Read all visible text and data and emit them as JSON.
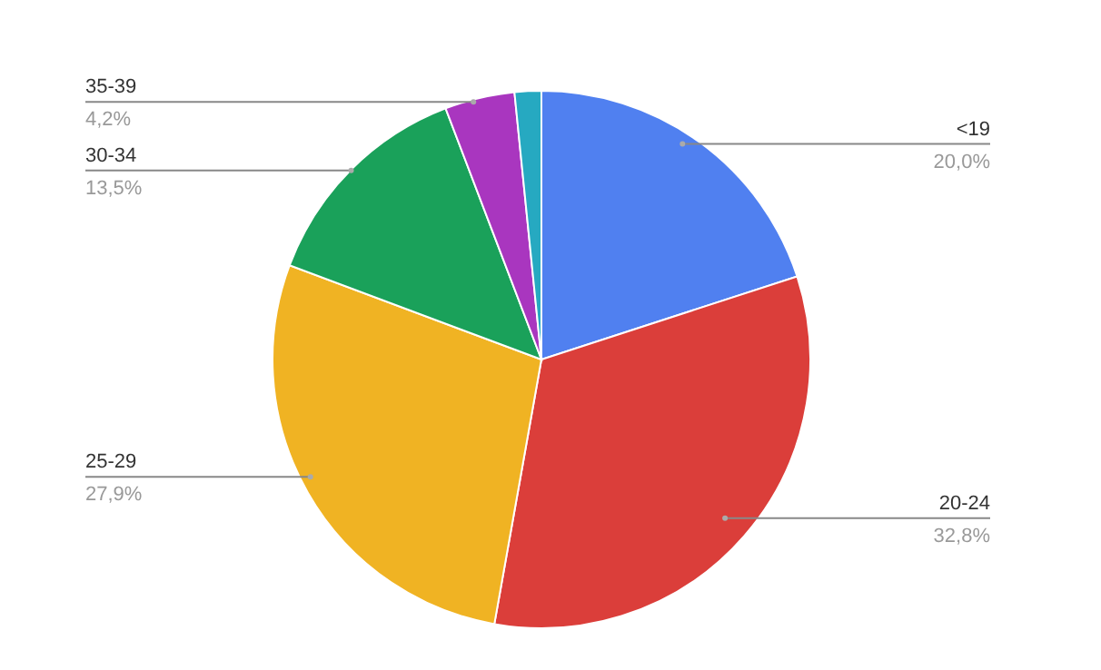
{
  "chart_data": {
    "type": "pie",
    "categories": [
      "<19",
      "20-24",
      "25-29",
      "30-34",
      "35-39",
      null
    ],
    "values": [
      20.0,
      32.8,
      27.9,
      13.5,
      4.2,
      1.6
    ],
    "colors": [
      "#5080f0",
      "#db3e3a",
      "#f0b323",
      "#1aa15a",
      "#a936bf",
      "#26a9c1"
    ],
    "value_labels": [
      "20,0%",
      "32,8%",
      "27,9%",
      "13,5%",
      "4,2%",
      null
    ]
  }
}
